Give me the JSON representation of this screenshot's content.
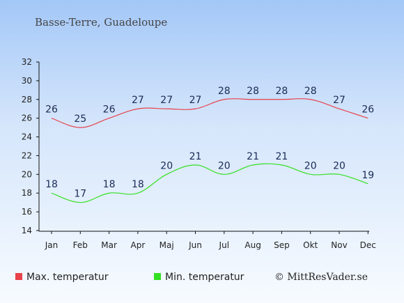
{
  "chart_data": {
    "type": "line",
    "title": "Basse-Terre, Guadeloupe",
    "categories": [
      "Jan",
      "Feb",
      "Mar",
      "Apr",
      "Maj",
      "Jun",
      "Jul",
      "Aug",
      "Sep",
      "Okt",
      "Nov",
      "Dec"
    ],
    "series": [
      {
        "name": "Max. temperatur",
        "color": "#e8424a",
        "values": [
          26,
          25,
          26,
          27,
          27,
          27,
          28,
          28,
          28,
          28,
          27,
          26
        ]
      },
      {
        "name": "Min. temperatur",
        "color": "#33e021",
        "values": [
          18,
          17,
          18,
          18,
          20,
          21,
          20,
          21,
          21,
          20,
          20,
          19
        ]
      }
    ],
    "ylim": [
      14,
      32
    ],
    "yticks": [
      14,
      16,
      18,
      20,
      22,
      24,
      26,
      28,
      30,
      32
    ],
    "grid": false,
    "legend": "bottom"
  },
  "credit": "© MittResVader.se"
}
